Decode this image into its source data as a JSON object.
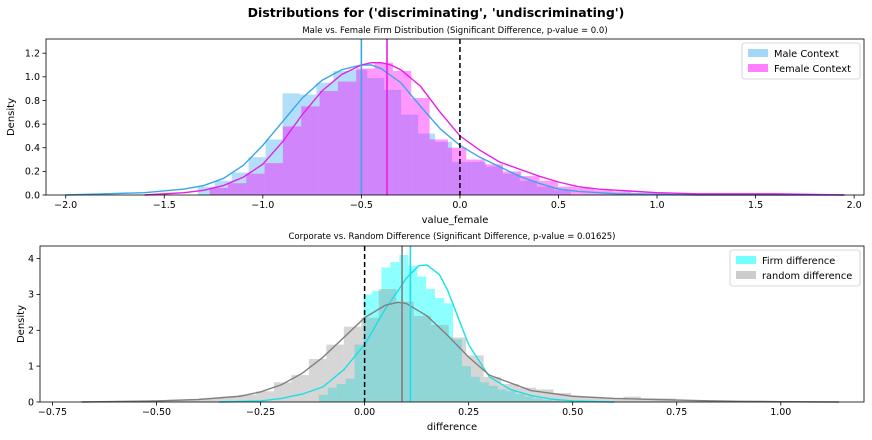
{
  "suptitle": "Distributions for ('discriminating', 'undiscriminating')",
  "chart_data": [
    {
      "type": "histogram_kde",
      "title": "Male vs. Female Firm Distribution (Significant Difference, p-value = 0.0)",
      "xlabel": "value_female",
      "ylabel": "Density",
      "xlim": [
        -2.1,
        2.05
      ],
      "ylim": [
        0,
        1.32
      ],
      "xticks": [
        -2.0,
        -1.5,
        -1.0,
        -0.5,
        0.0,
        0.5,
        1.0,
        1.5,
        2.0
      ],
      "xtick_labels": [
        "−2.0",
        "−1.5",
        "−1.0",
        "−0.5",
        "0.0",
        "0.5",
        "1.0",
        "1.5",
        "2.0"
      ],
      "yticks": [
        0,
        0.2,
        0.4,
        0.6,
        0.8,
        1.0,
        1.2
      ],
      "ytick_labels": [
        "0.0",
        "0.2",
        "0.4",
        "0.6",
        "0.8",
        "1.0",
        "1.2"
      ],
      "legend_position": "top-right",
      "reference_line": {
        "x": 0.0,
        "color": "#000000",
        "style": "dashed"
      },
      "series": [
        {
          "name": "Male Context",
          "color": "#55b6f2",
          "line_color": "#3aa6e8",
          "mean": -0.5,
          "bin_width": 0.086,
          "bins_left": [
            -1.33,
            -1.244,
            -1.158,
            -1.072,
            -0.986,
            -0.9,
            -0.814,
            -0.728,
            -0.642,
            -0.556,
            -0.47,
            -0.384,
            -0.298,
            -0.212,
            -0.126,
            -0.04,
            0.046,
            0.132,
            0.218,
            0.304,
            0.39,
            0.476
          ],
          "bins_height": [
            0.07,
            0.12,
            0.19,
            0.32,
            0.47,
            0.86,
            0.85,
            0.95,
            1.05,
            1.06,
            0.99,
            0.89,
            0.68,
            0.52,
            0.45,
            0.28,
            0.28,
            0.24,
            0.18,
            0.12,
            0.07,
            0.04
          ],
          "kde_x": [
            -2.0,
            -1.8,
            -1.6,
            -1.4,
            -1.3,
            -1.2,
            -1.1,
            -1.0,
            -0.9,
            -0.8,
            -0.7,
            -0.6,
            -0.5,
            -0.45,
            -0.4,
            -0.3,
            -0.2,
            -0.1,
            0.0,
            0.1,
            0.2,
            0.3,
            0.4,
            0.5,
            0.6,
            0.8,
            1.0,
            1.2,
            1.5,
            1.8,
            1.95
          ],
          "kde_y": [
            0.0,
            0.01,
            0.02,
            0.05,
            0.08,
            0.14,
            0.25,
            0.42,
            0.62,
            0.82,
            0.97,
            1.06,
            1.1,
            1.1,
            1.07,
            0.95,
            0.75,
            0.56,
            0.42,
            0.32,
            0.24,
            0.16,
            0.1,
            0.05,
            0.03,
            0.01,
            0.005,
            0.0,
            0.0,
            0.0,
            0.0
          ]
        },
        {
          "name": "Female Context",
          "color": "#ff00ff",
          "line_color": "#e81ee8",
          "mean": -0.37,
          "bin_width": 0.093,
          "bins_left": [
            -1.27,
            -1.177,
            -1.084,
            -0.991,
            -0.898,
            -0.805,
            -0.712,
            -0.619,
            -0.526,
            -0.433,
            -0.34,
            -0.247,
            -0.154,
            -0.061,
            0.032,
            0.125,
            0.218,
            0.311,
            0.404,
            0.497,
            0.59,
            0.683,
            0.776,
            0.869,
            0.962,
            1.055,
            1.148,
            1.241,
            1.334,
            1.427,
            1.52,
            1.613,
            1.706
          ],
          "bins_height": [
            0.06,
            0.1,
            0.18,
            0.27,
            0.58,
            0.75,
            0.88,
            0.96,
            1.07,
            1.12,
            1.05,
            0.82,
            0.47,
            0.4,
            0.3,
            0.26,
            0.2,
            0.16,
            0.12,
            0.07,
            0.06,
            0.04,
            0.03,
            0.02,
            0.02,
            0.01,
            0.01,
            0.01,
            0.01,
            0.005,
            0.01,
            0.01,
            0.005
          ],
          "kde_x": [
            -1.6,
            -1.4,
            -1.3,
            -1.2,
            -1.1,
            -1.0,
            -0.9,
            -0.8,
            -0.7,
            -0.6,
            -0.5,
            -0.45,
            -0.4,
            -0.35,
            -0.3,
            -0.2,
            -0.1,
            0.0,
            0.1,
            0.2,
            0.3,
            0.4,
            0.5,
            0.6,
            0.7,
            0.8,
            1.0,
            1.2,
            1.4,
            1.6,
            1.8,
            1.95
          ],
          "kde_y": [
            0.0,
            0.02,
            0.04,
            0.08,
            0.15,
            0.26,
            0.45,
            0.68,
            0.88,
            1.02,
            1.1,
            1.12,
            1.12,
            1.1,
            1.06,
            0.92,
            0.7,
            0.5,
            0.38,
            0.28,
            0.22,
            0.16,
            0.11,
            0.07,
            0.05,
            0.04,
            0.02,
            0.01,
            0.01,
            0.01,
            0.005,
            0.0
          ]
        }
      ]
    },
    {
      "type": "histogram_kde",
      "title": "Corporate vs. Random Difference (Significant Difference, p-value = 0.01625)",
      "xlabel": "difference",
      "ylabel": "Density",
      "xlim": [
        -0.78,
        1.2
      ],
      "ylim": [
        0,
        4.35
      ],
      "xticks": [
        -0.75,
        -0.5,
        -0.25,
        0.0,
        0.25,
        0.5,
        0.75,
        1.0
      ],
      "xtick_labels": [
        "−0.75",
        "−0.50",
        "−0.25",
        "0.00",
        "0.25",
        "0.50",
        "0.75",
        "1.00"
      ],
      "yticks": [
        0,
        1,
        2,
        3,
        4
      ],
      "ytick_labels": [
        "0",
        "1",
        "2",
        "3",
        "4"
      ],
      "legend_position": "top-right",
      "reference_line": {
        "x": 0.0,
        "color": "#000000",
        "style": "dashed"
      },
      "series": [
        {
          "name": "Firm difference",
          "color": "#00ffff",
          "line_color": "#18e0e8",
          "mean": 0.11,
          "bin_width": 0.0215,
          "bins_left": [
            -0.11,
            -0.0885,
            -0.067,
            -0.0455,
            -0.024,
            -0.0025,
            0.019,
            0.0405,
            0.062,
            0.0835,
            0.105,
            0.1265,
            0.148,
            0.1695,
            0.191,
            0.2125,
            0.234,
            0.2555,
            0.277,
            0.2985,
            0.32,
            0.3415,
            0.363,
            0.3845,
            0.406,
            0.4275,
            0.449
          ],
          "bins_height": [
            0.2,
            0.4,
            0.5,
            0.65,
            1.6,
            3.0,
            3.1,
            3.75,
            3.9,
            4.1,
            3.8,
            3.5,
            3.15,
            2.9,
            2.75,
            1.75,
            1.0,
            0.7,
            0.55,
            0.45,
            0.35,
            0.3,
            0.22,
            0.15,
            0.1,
            0.06,
            0.04
          ],
          "kde_x": [
            -0.35,
            -0.25,
            -0.2,
            -0.15,
            -0.1,
            -0.05,
            0.0,
            0.05,
            0.08,
            0.1,
            0.13,
            0.15,
            0.18,
            0.2,
            0.25,
            0.3,
            0.35,
            0.4,
            0.45,
            0.5,
            0.6
          ],
          "kde_y": [
            0.0,
            0.03,
            0.1,
            0.22,
            0.42,
            0.9,
            1.6,
            2.6,
            3.1,
            3.45,
            3.8,
            3.82,
            3.55,
            3.1,
            1.6,
            0.7,
            0.35,
            0.18,
            0.08,
            0.03,
            0.0
          ]
        },
        {
          "name": "random difference",
          "color": "#999999",
          "line_color": "#808080",
          "mean": 0.09,
          "bin_width": 0.042,
          "bins_left": [
            -0.68,
            -0.638,
            -0.596,
            -0.554,
            -0.512,
            -0.47,
            -0.428,
            -0.386,
            -0.344,
            -0.302,
            -0.26,
            -0.218,
            -0.176,
            -0.134,
            -0.092,
            -0.05,
            -0.008,
            0.034,
            0.076,
            0.118,
            0.16,
            0.202,
            0.244,
            0.286,
            0.328,
            0.37,
            0.412,
            0.454,
            0.496,
            0.538,
            0.58,
            0.622,
            0.664,
            0.706,
            0.748,
            0.79,
            0.832,
            0.874,
            0.916,
            0.958,
            1.0,
            1.042,
            1.084
          ],
          "bins_height": [
            0.02,
            0.02,
            0.03,
            0.03,
            0.05,
            0.06,
            0.08,
            0.1,
            0.15,
            0.2,
            0.3,
            0.55,
            0.75,
            1.2,
            1.6,
            2.1,
            2.35,
            3.15,
            2.8,
            2.4,
            2.15,
            1.8,
            1.3,
            0.7,
            0.5,
            0.4,
            0.35,
            0.25,
            0.15,
            0.12,
            0.1,
            0.15,
            0.1,
            0.1,
            0.05,
            0.04,
            0.03,
            0.02,
            0.02,
            0.02,
            0.01,
            0.01,
            0.01
          ],
          "kde_x": [
            -0.68,
            -0.5,
            -0.4,
            -0.3,
            -0.25,
            -0.2,
            -0.15,
            -0.1,
            -0.05,
            0.0,
            0.05,
            0.08,
            0.1,
            0.15,
            0.2,
            0.25,
            0.3,
            0.4,
            0.5,
            0.6,
            0.7,
            0.8,
            0.9,
            1.0,
            1.14
          ],
          "kde_y": [
            0.0,
            0.03,
            0.07,
            0.16,
            0.28,
            0.48,
            0.8,
            1.25,
            1.8,
            2.35,
            2.7,
            2.78,
            2.75,
            2.4,
            1.85,
            1.25,
            0.75,
            0.32,
            0.16,
            0.1,
            0.07,
            0.04,
            0.02,
            0.01,
            0.0
          ]
        }
      ]
    }
  ]
}
